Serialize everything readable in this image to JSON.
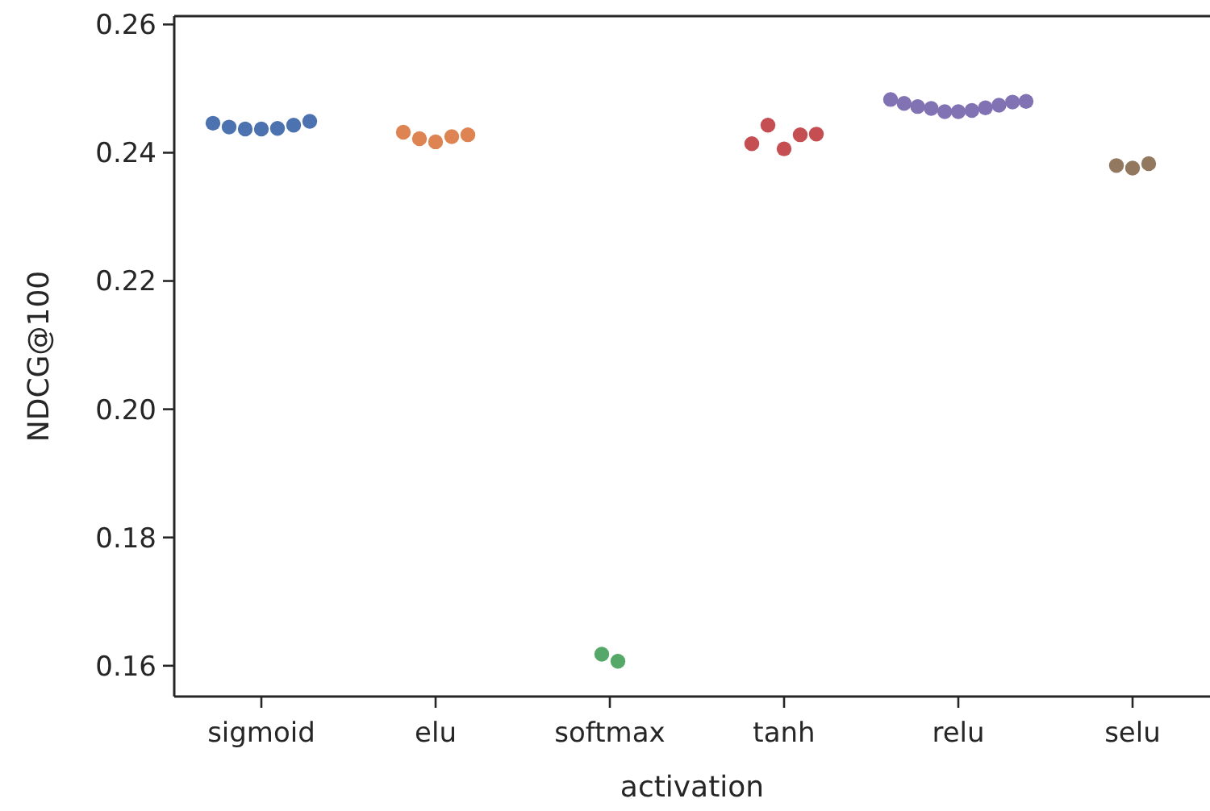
{
  "chart_data": {
    "type": "scatter",
    "xlabel": "activation",
    "ylabel": "NDCG@100",
    "categories": [
      "sigmoid",
      "elu",
      "softmax",
      "tanh",
      "relu",
      "selu"
    ],
    "ylim": [
      0.1552,
      0.2613
    ],
    "yticks": [
      {
        "value": 0.16,
        "label": "0.16"
      },
      {
        "value": 0.18,
        "label": "0.18"
      },
      {
        "value": 0.2,
        "label": "0.20"
      },
      {
        "value": 0.22,
        "label": "0.22"
      },
      {
        "value": 0.24,
        "label": "0.24"
      },
      {
        "value": 0.26,
        "label": "0.26"
      }
    ],
    "grid": false,
    "marker": "circle",
    "series": [
      {
        "color": "#4c72b0",
        "x": [
          "sigmoid",
          "sigmoid",
          "sigmoid",
          "sigmoid",
          "sigmoid",
          "sigmoid",
          "sigmoid"
        ],
        "values": [
          0.2446,
          0.244,
          0.2437,
          0.2437,
          0.2438,
          0.2443,
          0.2449
        ]
      },
      {
        "color": "#dd8452",
        "x": [
          "elu",
          "elu",
          "elu",
          "elu",
          "elu"
        ],
        "values": [
          0.2432,
          0.2422,
          0.2417,
          0.2425,
          0.2428
        ]
      },
      {
        "color": "#55a868",
        "x": [
          "softmax",
          "softmax"
        ],
        "values": [
          0.1618,
          0.1607
        ]
      },
      {
        "color": "#c44e52",
        "x": [
          "tanh",
          "tanh",
          "tanh",
          "tanh",
          "tanh"
        ],
        "values": [
          0.2414,
          0.2443,
          0.2406,
          0.2428,
          0.2429
        ]
      },
      {
        "color": "#8172b3",
        "x": [
          "relu",
          "relu",
          "relu",
          "relu",
          "relu",
          "relu",
          "relu",
          "relu",
          "relu",
          "relu",
          "relu"
        ],
        "values": [
          0.2483,
          0.2477,
          0.2472,
          0.2469,
          0.2464,
          0.2464,
          0.2466,
          0.247,
          0.2474,
          0.2479,
          0.248
        ]
      },
      {
        "color": "#937860",
        "x": [
          "selu",
          "selu",
          "selu"
        ],
        "values": [
          0.238,
          0.2376,
          0.2383
        ]
      }
    ]
  }
}
